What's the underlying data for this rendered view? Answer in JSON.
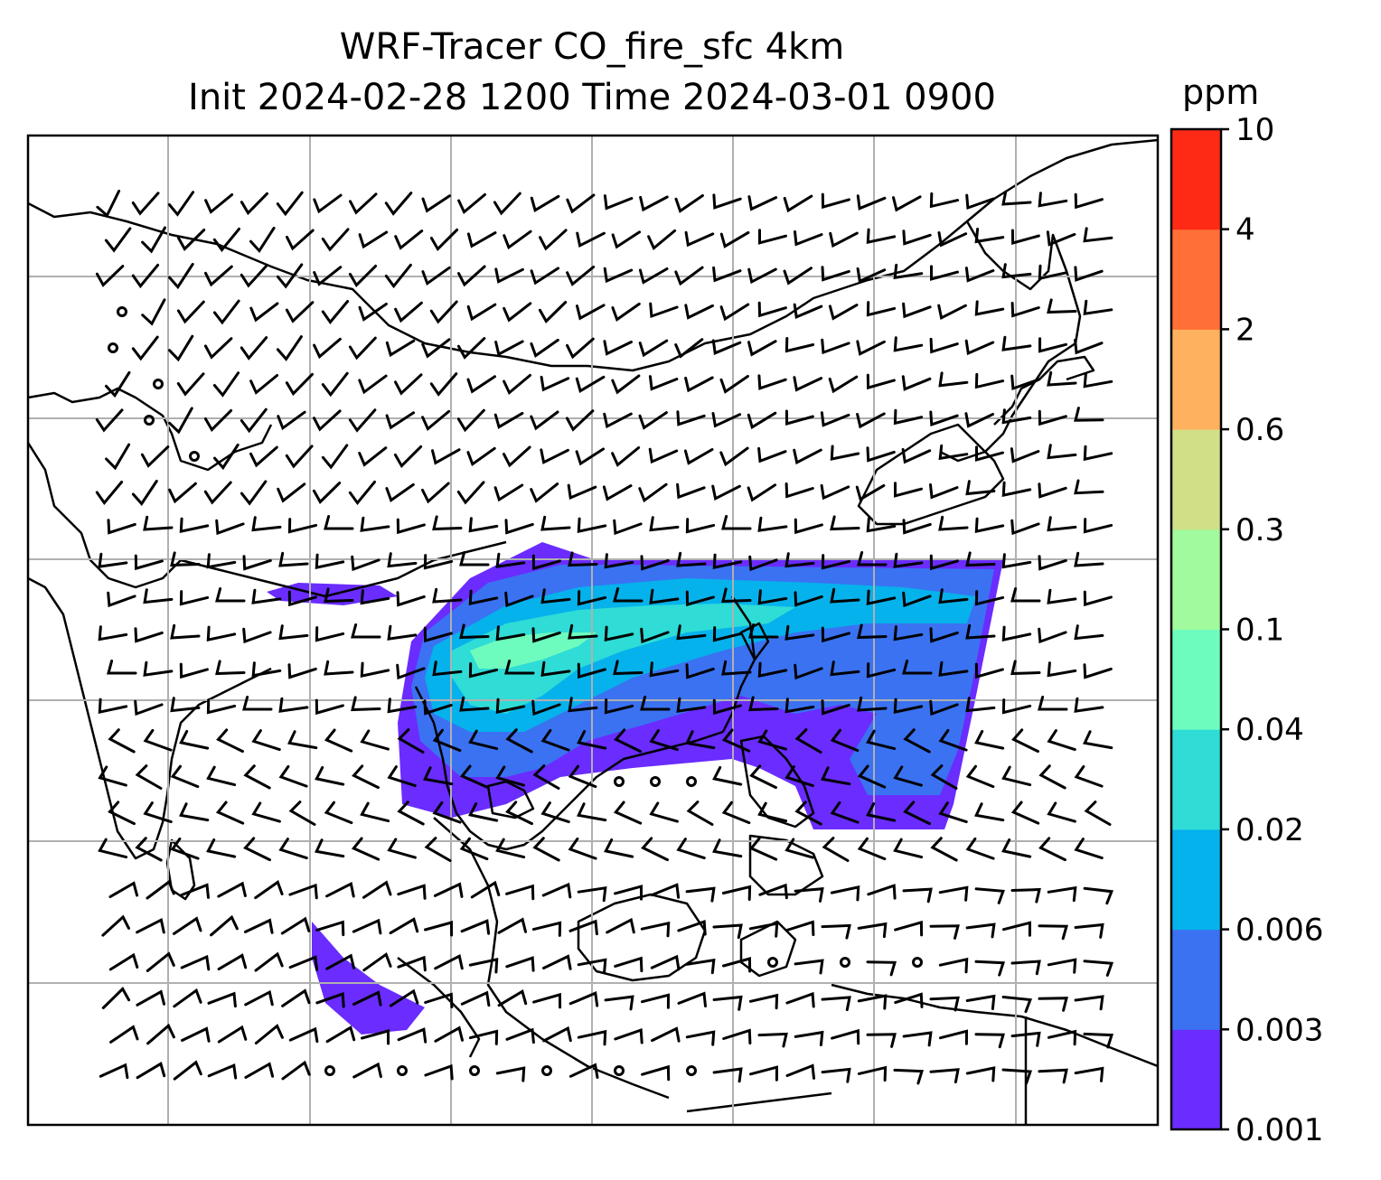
{
  "title_line1": "WRF-Tracer CO_fire_sfc 4km",
  "title_line2": "Init 2024-02-28 1200 Time 2024-03-01 0900",
  "colorbar": {
    "unit": "ppm",
    "levels": [
      "0.001",
      "0.003",
      "0.006",
      "0.02",
      "0.04",
      "0.1",
      "0.3",
      "0.6",
      "2",
      "4",
      "10"
    ],
    "colors": [
      "#6a2cff",
      "#3a72f2",
      "#05b2ec",
      "#2fdcd6",
      "#6dfcbe",
      "#a1fa9d",
      "#d1e086",
      "#feb15f",
      "#ff6f37",
      "#ff2a16"
    ]
  }
}
